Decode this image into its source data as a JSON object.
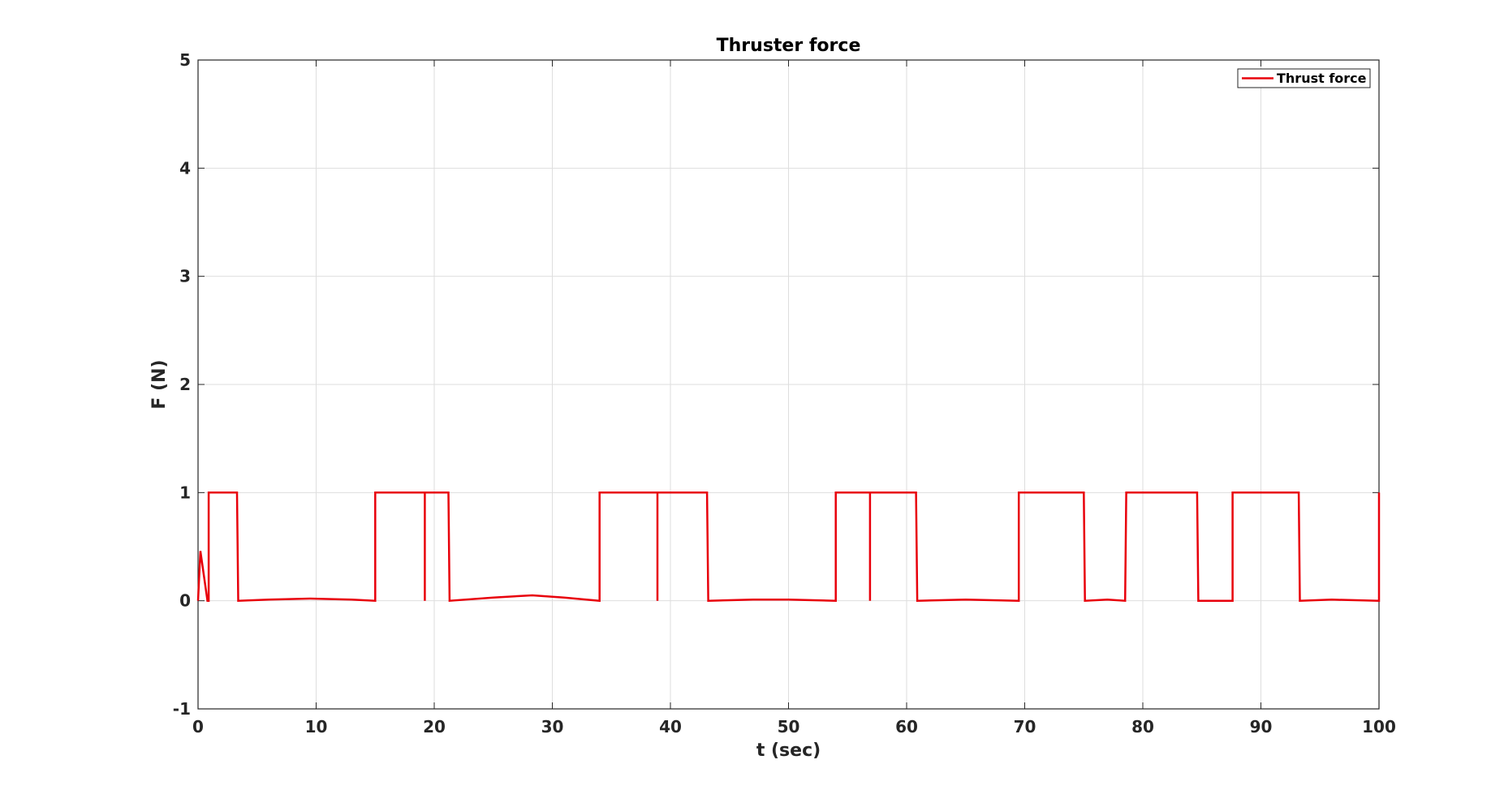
{
  "chart_data": {
    "type": "line",
    "title": "Thruster force",
    "xlabel": "t (sec)",
    "ylabel": "F (N)",
    "xlim": [
      0,
      100
    ],
    "ylim": [
      -1,
      5
    ],
    "xticks": [
      0,
      10,
      20,
      30,
      40,
      50,
      60,
      70,
      80,
      90,
      100
    ],
    "yticks": [
      -1,
      0,
      1,
      2,
      3,
      4,
      5
    ],
    "grid": true,
    "legend_position": "top-right",
    "series": [
      {
        "name": "Thrust force",
        "color": "#e8000b",
        "x": [
          0,
          0.2,
          0.8,
          0.9,
          0.9,
          3.3,
          3.4,
          6,
          9.5,
          13,
          15,
          15,
          19.2,
          19.2,
          19.2,
          21.2,
          21.3,
          25,
          28.3,
          31,
          34,
          34,
          38.9,
          38.9,
          38.9,
          43.1,
          43.2,
          47,
          50,
          54,
          54,
          56.9,
          56.9,
          56.9,
          60.8,
          60.9,
          65,
          69.5,
          69.5,
          75,
          75.1,
          77,
          78.5,
          78.6,
          78.6,
          84.6,
          84.7,
          87.6,
          87.6,
          93.2,
          93.3,
          96,
          100,
          100
        ],
        "y": [
          0,
          0.46,
          0,
          0,
          1,
          1,
          0,
          0.01,
          0.02,
          0.01,
          0,
          1,
          1,
          0,
          1,
          1,
          0,
          0.03,
          0.05,
          0.03,
          0,
          1,
          1,
          0,
          1,
          1,
          0,
          0.01,
          0.01,
          0,
          1,
          1,
          0,
          1,
          1,
          0,
          0.01,
          0,
          1,
          1,
          0,
          0.01,
          0,
          1,
          1,
          1,
          0,
          0,
          1,
          1,
          0,
          0.01,
          0,
          1
        ]
      }
    ]
  }
}
